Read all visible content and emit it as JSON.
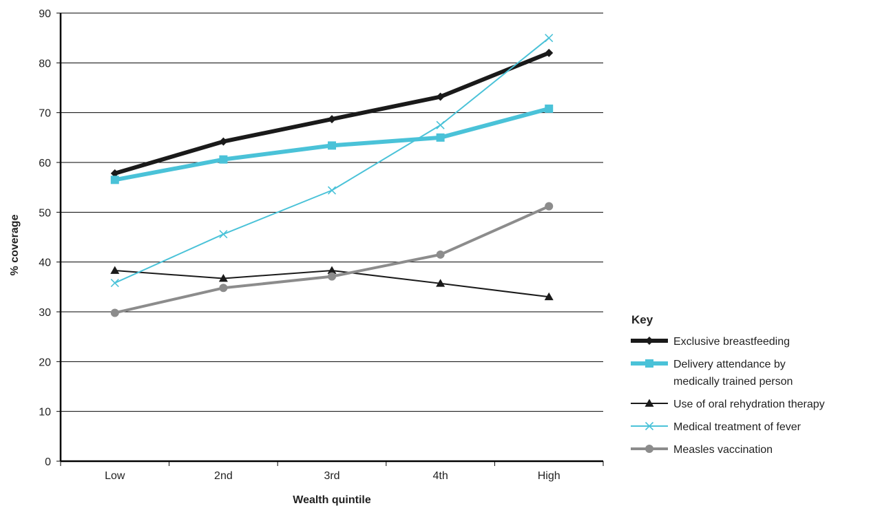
{
  "chart_data": {
    "type": "line",
    "title": "",
    "xlabel": "Wealth quintile",
    "ylabel": "% coverage",
    "categories": [
      "Low",
      "2nd",
      "3rd",
      "4th",
      "High"
    ],
    "ylim": [
      0,
      90
    ],
    "yticks": [
      0,
      10,
      20,
      30,
      40,
      50,
      60,
      70,
      80,
      90
    ],
    "grid": "horizontal",
    "legend_title": "Key",
    "legend_position": "bottom-right",
    "series": [
      {
        "name": "Exclusive breastfeeding",
        "legend_lines": [
          "Exclusive breastfeeding"
        ],
        "values": [
          57.8,
          64.2,
          68.7,
          73.2,
          82
        ],
        "color": "#1a1a1a",
        "marker": "diamond",
        "width": "thick"
      },
      {
        "name": "Delivery attendance by medically trained person",
        "legend_lines": [
          "Delivery attendance by",
          "medically trained person"
        ],
        "values": [
          56.5,
          60.6,
          63.4,
          65,
          70.8
        ],
        "color": "#4ac2d8",
        "marker": "square",
        "width": "thick"
      },
      {
        "name": "Use of oral rehydration therapy",
        "legend_lines": [
          "Use of oral rehydration therapy"
        ],
        "values": [
          38.3,
          36.7,
          38.3,
          35.7,
          33
        ],
        "color": "#1a1a1a",
        "marker": "triangle",
        "width": "thin"
      },
      {
        "name": "Medical treatment of fever",
        "legend_lines": [
          "Medical treatment of fever"
        ],
        "values": [
          35.8,
          45.6,
          54.4,
          67.5,
          85
        ],
        "color": "#4ac2d8",
        "marker": "x",
        "width": "thin"
      },
      {
        "name": "Measles vaccination",
        "legend_lines": [
          "Measles vaccination"
        ],
        "values": [
          29.8,
          34.8,
          37.1,
          41.5,
          51.2
        ],
        "color": "#8c8c8c",
        "marker": "circle",
        "width": "medium"
      }
    ]
  }
}
